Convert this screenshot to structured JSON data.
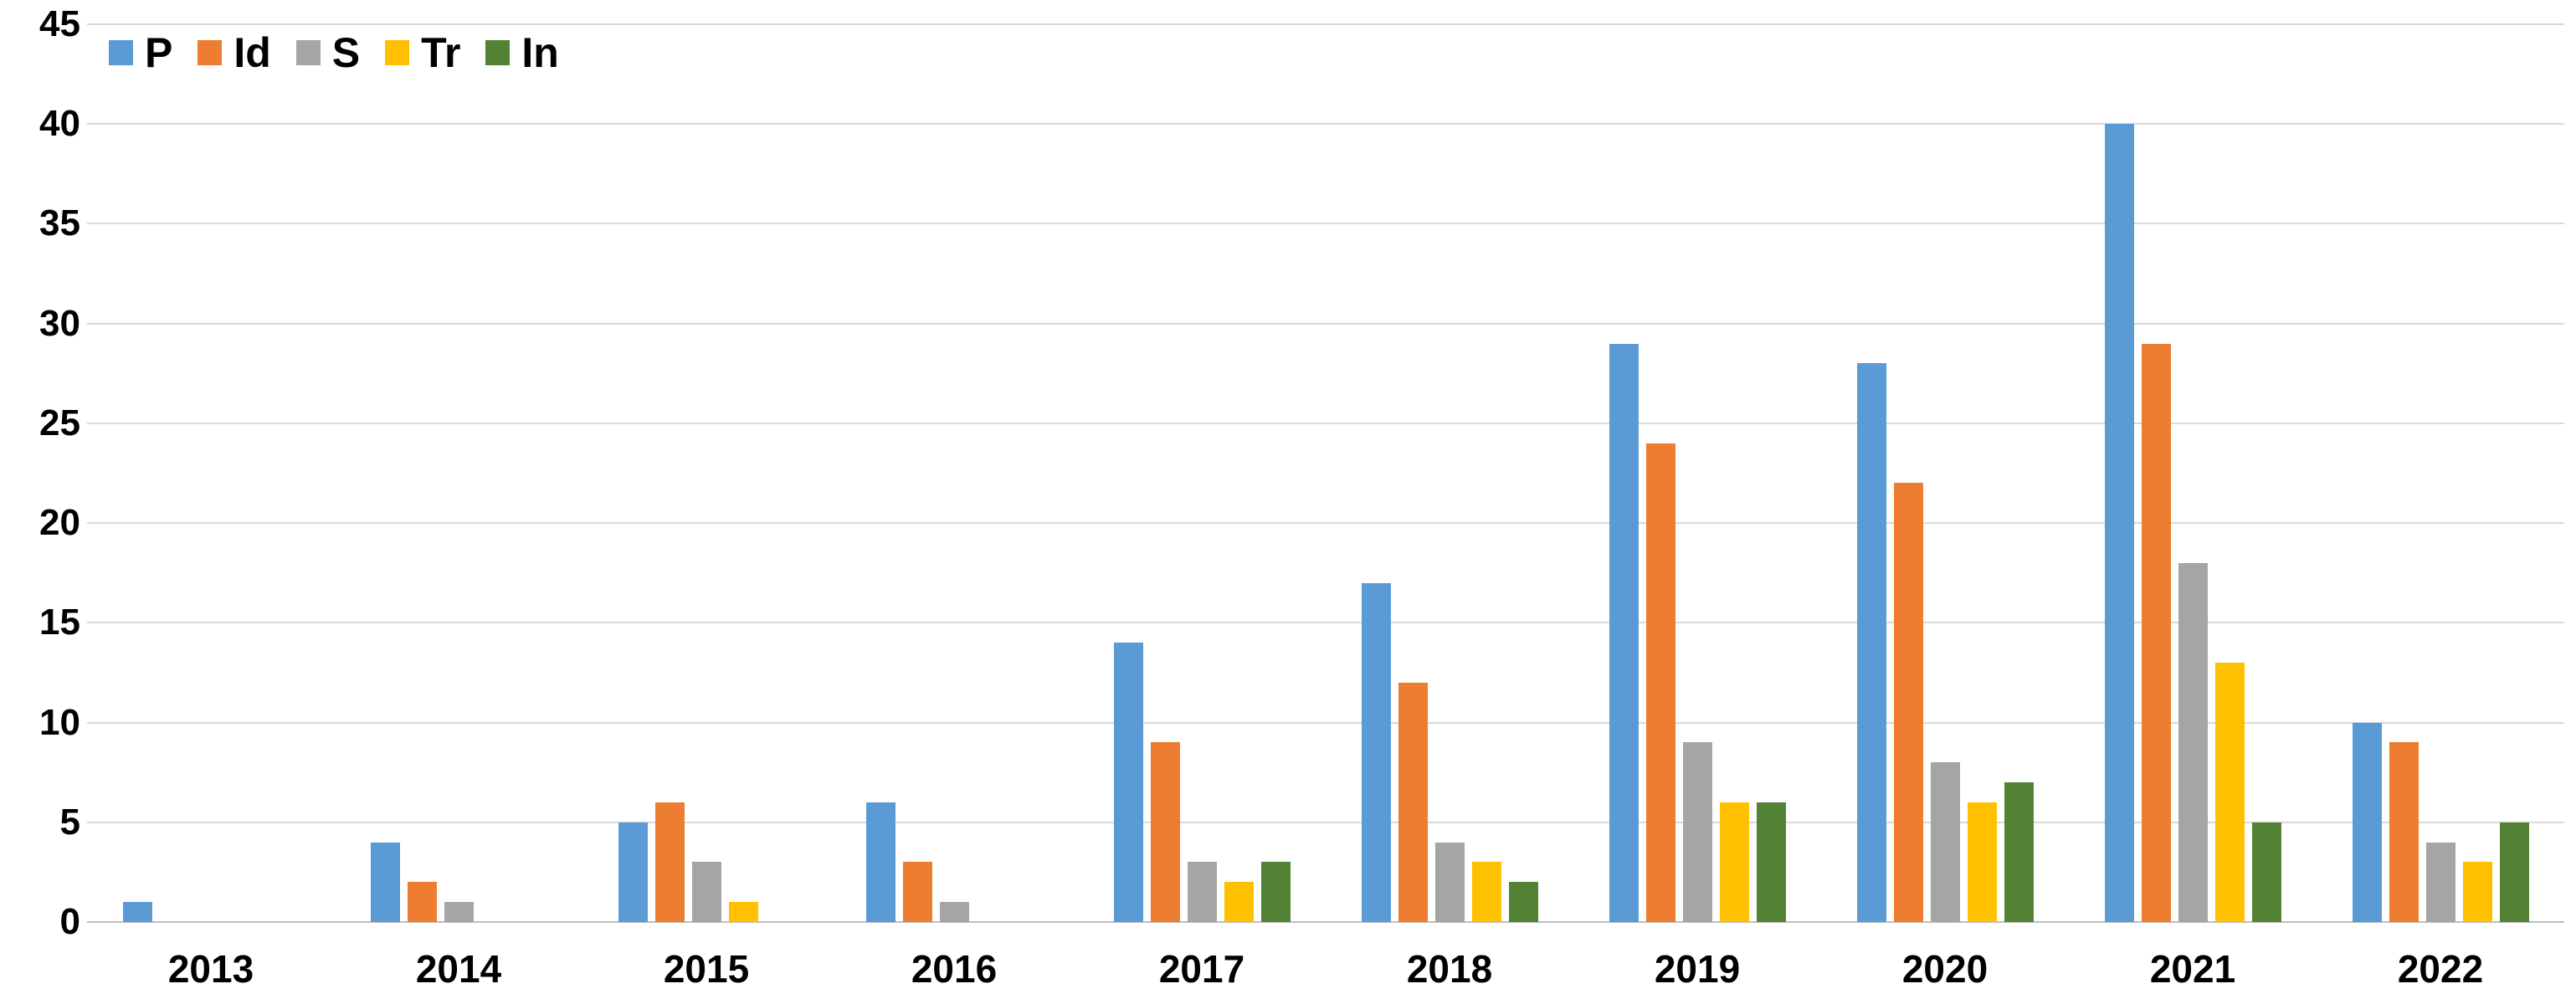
{
  "chart_data": {
    "type": "bar",
    "title": "",
    "xlabel": "",
    "ylabel": "",
    "categories": [
      "2013",
      "2014",
      "2015",
      "2016",
      "2017",
      "2018",
      "2019",
      "2020",
      "2021",
      "2022"
    ],
    "series": [
      {
        "name": "P",
        "color": "#5B9BD5",
        "values": [
          1,
          4,
          5,
          6,
          14,
          17,
          29,
          28,
          40,
          10
        ]
      },
      {
        "name": "Id",
        "color": "#ED7D31",
        "values": [
          0,
          2,
          6,
          3,
          9,
          12,
          24,
          22,
          29,
          9
        ]
      },
      {
        "name": "S",
        "color": "#A5A5A5",
        "values": [
          0,
          1,
          3,
          1,
          3,
          4,
          9,
          8,
          18,
          4
        ]
      },
      {
        "name": "Tr",
        "color": "#FFC000",
        "values": [
          0,
          0,
          1,
          0,
          2,
          3,
          6,
          6,
          13,
          3
        ]
      },
      {
        "name": "In",
        "color": "#548235",
        "values": [
          0,
          0,
          0,
          0,
          3,
          2,
          6,
          7,
          5,
          5
        ]
      }
    ],
    "ylim": [
      0,
      45
    ],
    "ytick_step": 5,
    "ytick_labels": [
      "0",
      "5",
      "10",
      "15",
      "20",
      "25",
      "30",
      "35",
      "40",
      "45"
    ],
    "grid": true,
    "gridline_color": "#D9D9D9",
    "axis_line_color": "#BFBFBF",
    "legend_position": "top-left",
    "legend_entries": [
      "P",
      "Id",
      "S",
      "Tr",
      "In"
    ]
  }
}
